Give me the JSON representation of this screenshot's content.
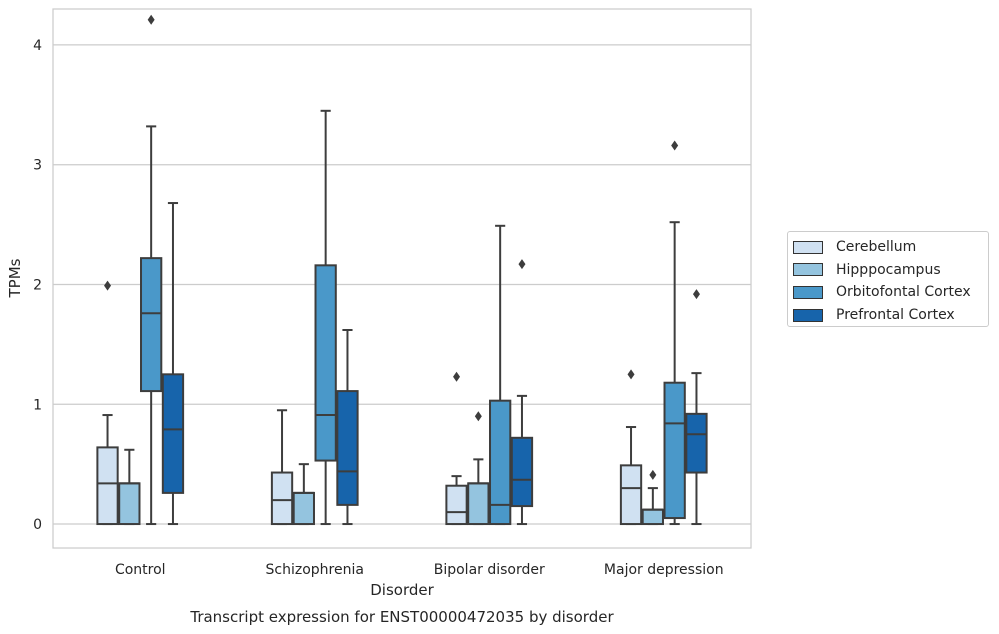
{
  "chart_data": {
    "type": "box",
    "title": "Transcript expression for ENST00000472035 by disorder",
    "xlabel": "Disorder",
    "ylabel": "TPMs",
    "ylim": [
      -0.2,
      4.3
    ],
    "yticks": [
      0,
      1,
      2,
      3,
      4
    ],
    "grid": "horizontal",
    "legend_position": "right",
    "categories": [
      "Control",
      "Schizophrenia",
      "Bipolar disorder",
      "Major depression"
    ],
    "series": [
      {
        "name": "Cerebellum",
        "color": "#d0e1f2",
        "boxes": [
          {
            "whisker_low": 0,
            "q1": 0,
            "median": 0.34,
            "q3": 0.64,
            "whisker_high": 0.91,
            "outliers": [
              1.99
            ]
          },
          {
            "whisker_low": 0,
            "q1": 0,
            "median": 0.2,
            "q3": 0.43,
            "whisker_high": 0.95,
            "outliers": []
          },
          {
            "whisker_low": 0,
            "q1": 0,
            "median": 0.1,
            "q3": 0.32,
            "whisker_high": 0.4,
            "outliers": [
              1.23
            ]
          },
          {
            "whisker_low": 0,
            "q1": 0,
            "median": 0.3,
            "q3": 0.49,
            "whisker_high": 0.81,
            "outliers": [
              1.25
            ]
          }
        ]
      },
      {
        "name": "Hipppocampus",
        "color": "#94c4df",
        "boxes": [
          {
            "whisker_low": 0,
            "q1": 0,
            "median": 0.34,
            "q3": 0.34,
            "whisker_high": 0.62,
            "outliers": []
          },
          {
            "whisker_low": 0,
            "q1": 0,
            "median": 0.26,
            "q3": 0.26,
            "whisker_high": 0.5,
            "outliers": []
          },
          {
            "whisker_low": 0,
            "q1": 0,
            "median": 0.34,
            "q3": 0.34,
            "whisker_high": 0.54,
            "outliers": [
              0.9
            ]
          },
          {
            "whisker_low": 0,
            "q1": 0,
            "median": 0.12,
            "q3": 0.12,
            "whisker_high": 0.3,
            "outliers": [
              0.41
            ]
          }
        ]
      },
      {
        "name": "Orbitofontal Cortex",
        "color": "#4a98c9",
        "boxes": [
          {
            "whisker_low": 0,
            "q1": 1.11,
            "median": 1.76,
            "q3": 2.22,
            "whisker_high": 3.32,
            "outliers": [
              4.21
            ]
          },
          {
            "whisker_low": 0,
            "q1": 0.53,
            "median": 0.91,
            "q3": 2.16,
            "whisker_high": 3.45,
            "outliers": []
          },
          {
            "whisker_low": 0,
            "q1": 0,
            "median": 0.16,
            "q3": 1.03,
            "whisker_high": 2.49,
            "outliers": []
          },
          {
            "whisker_low": 0,
            "q1": 0.05,
            "median": 0.84,
            "q3": 1.18,
            "whisker_high": 2.52,
            "outliers": [
              3.16
            ]
          }
        ]
      },
      {
        "name": "Prefrontal Cortex",
        "color": "#1764ab",
        "boxes": [
          {
            "whisker_low": 0,
            "q1": 0.26,
            "median": 0.79,
            "q3": 1.25,
            "whisker_high": 2.68,
            "outliers": []
          },
          {
            "whisker_low": 0,
            "q1": 0.16,
            "median": 0.44,
            "q3": 1.11,
            "whisker_high": 1.62,
            "outliers": []
          },
          {
            "whisker_low": 0,
            "q1": 0.15,
            "median": 0.37,
            "q3": 0.72,
            "whisker_high": 1.07,
            "outliers": [
              2.17
            ]
          },
          {
            "whisker_low": 0,
            "q1": 0.43,
            "median": 0.75,
            "q3": 0.92,
            "whisker_high": 1.26,
            "outliers": [
              1.92
            ]
          }
        ]
      }
    ]
  }
}
